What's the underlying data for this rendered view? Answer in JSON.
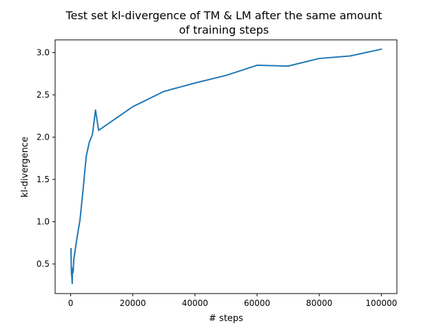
{
  "chart_data": {
    "type": "line",
    "title_lines": [
      "Test set kl-divergence of TM & LM after the same amount",
      "of training steps"
    ],
    "xlabel": "# steps",
    "ylabel": "kl-divergence",
    "xlim": [
      -5000,
      105000
    ],
    "ylim": [
      0.15,
      3.15
    ],
    "xticks": [
      0,
      20000,
      40000,
      60000,
      80000,
      100000
    ],
    "xtick_labels": [
      "0",
      "20000",
      "40000",
      "60000",
      "80000",
      "100000"
    ],
    "yticks": [
      0.5,
      1.0,
      1.5,
      2.0,
      2.5,
      3.0
    ],
    "ytick_labels": [
      "0.5",
      "1.0",
      "1.5",
      "2.0",
      "2.5",
      "3.0"
    ],
    "grid": false,
    "series": [
      {
        "color": "#1f77b4",
        "x": [
          100,
          200,
          300,
          400,
          500,
          600,
          800,
          1000,
          2000,
          3000,
          4000,
          5000,
          6000,
          7000,
          8000,
          9000,
          20000,
          30000,
          40000,
          50000,
          60000,
          70000,
          80000,
          90000,
          100000
        ],
        "y": [
          0.68,
          0.45,
          0.37,
          0.34,
          0.27,
          0.45,
          0.4,
          0.55,
          0.8,
          1.02,
          1.38,
          1.77,
          1.94,
          2.03,
          2.32,
          2.08,
          2.36,
          2.54,
          2.64,
          2.73,
          2.85,
          2.84,
          2.93,
          2.96,
          3.04
        ]
      }
    ]
  }
}
